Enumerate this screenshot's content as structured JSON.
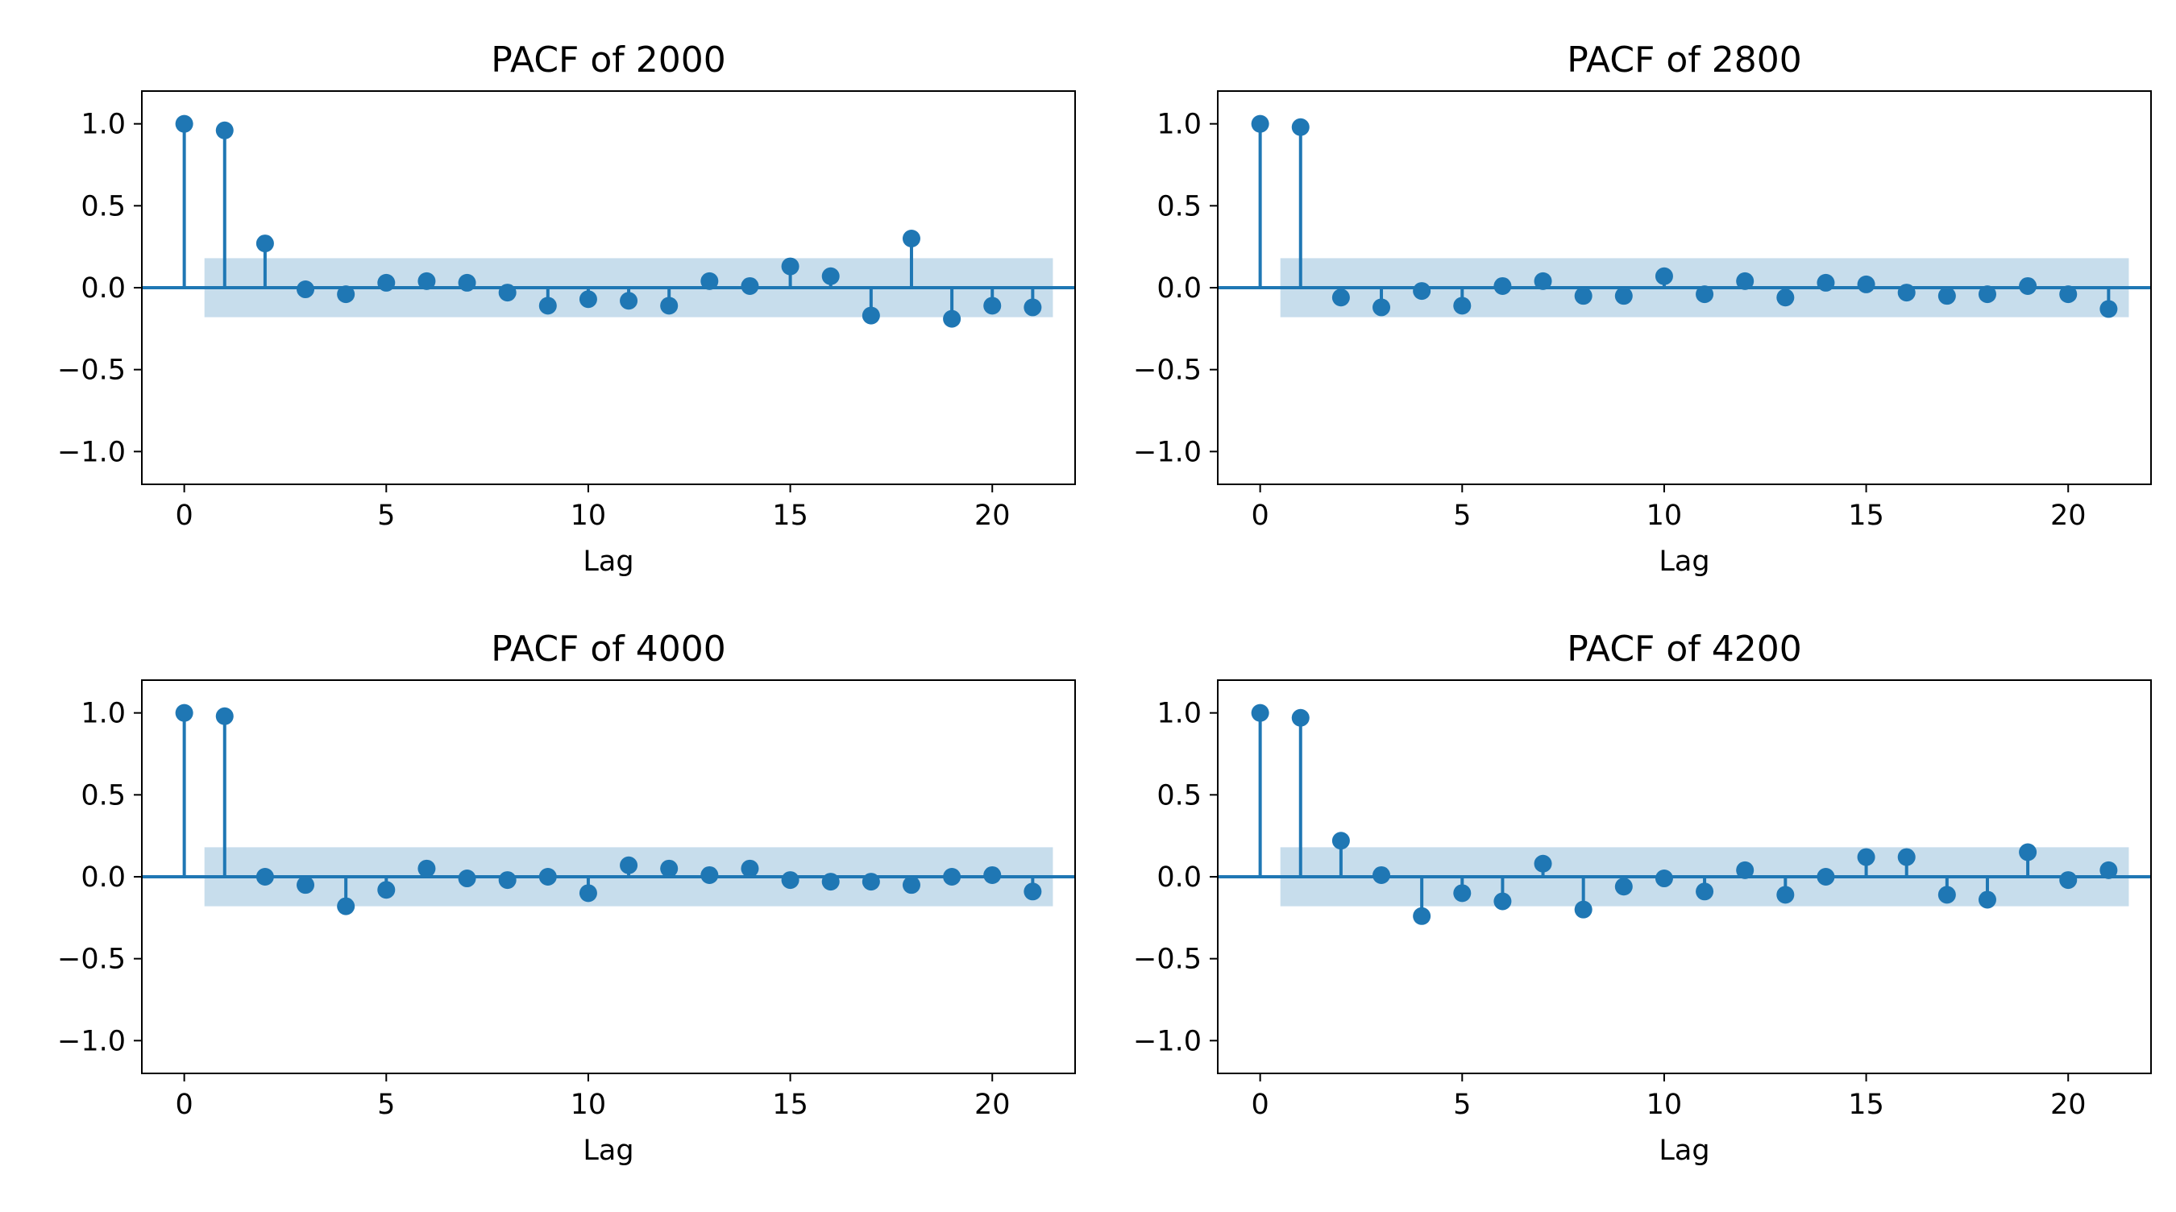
{
  "colors": {
    "series": "#1f77b4",
    "band": "#1f77b4",
    "axes": "#000000"
  },
  "chart_data": [
    {
      "type": "stem",
      "title": "PACF of 2000",
      "xlabel": "Lag",
      "ylabel": "",
      "xlim": [
        -1.05,
        22.05
      ],
      "ylim": [
        -1.2,
        1.2
      ],
      "xticks": [
        "0",
        "5",
        "10",
        "15",
        "20"
      ],
      "yticks": [
        "−1.0",
        "−0.5",
        "0.0",
        "0.5",
        "1.0"
      ],
      "confidence_band": [
        -0.18,
        0.18
      ],
      "x": [
        0,
        1,
        2,
        3,
        4,
        5,
        6,
        7,
        8,
        9,
        10,
        11,
        12,
        13,
        14,
        15,
        16,
        17,
        18,
        19,
        20,
        21
      ],
      "values": [
        1.0,
        0.96,
        0.27,
        -0.01,
        -0.04,
        0.03,
        0.04,
        0.03,
        -0.03,
        -0.11,
        -0.07,
        -0.08,
        -0.11,
        0.04,
        0.01,
        0.13,
        0.07,
        -0.17,
        0.3,
        -0.19,
        -0.11,
        -0.12
      ]
    },
    {
      "type": "stem",
      "title": "PACF of 2800",
      "xlabel": "Lag",
      "ylabel": "",
      "xlim": [
        -1.05,
        22.05
      ],
      "ylim": [
        -1.2,
        1.2
      ],
      "xticks": [
        "0",
        "5",
        "10",
        "15",
        "20"
      ],
      "yticks": [
        "−1.0",
        "−0.5",
        "0.0",
        "0.5",
        "1.0"
      ],
      "confidence_band": [
        -0.18,
        0.18
      ],
      "x": [
        0,
        1,
        2,
        3,
        4,
        5,
        6,
        7,
        8,
        9,
        10,
        11,
        12,
        13,
        14,
        15,
        16,
        17,
        18,
        19,
        20,
        21
      ],
      "values": [
        1.0,
        0.98,
        -0.06,
        -0.12,
        -0.02,
        -0.11,
        0.01,
        0.04,
        -0.05,
        -0.05,
        0.07,
        -0.04,
        0.04,
        -0.06,
        0.03,
        0.02,
        -0.03,
        -0.05,
        -0.04,
        0.01,
        -0.04,
        -0.13
      ]
    },
    {
      "type": "stem",
      "title": "PACF of 4000",
      "xlabel": "Lag",
      "ylabel": "",
      "xlim": [
        -1.05,
        22.05
      ],
      "ylim": [
        -1.2,
        1.2
      ],
      "xticks": [
        "0",
        "5",
        "10",
        "15",
        "20"
      ],
      "yticks": [
        "−1.0",
        "−0.5",
        "0.0",
        "0.5",
        "1.0"
      ],
      "confidence_band": [
        -0.18,
        0.18
      ],
      "x": [
        0,
        1,
        2,
        3,
        4,
        5,
        6,
        7,
        8,
        9,
        10,
        11,
        12,
        13,
        14,
        15,
        16,
        17,
        18,
        19,
        20,
        21
      ],
      "values": [
        1.0,
        0.98,
        0.0,
        -0.05,
        -0.18,
        -0.08,
        0.05,
        -0.01,
        -0.02,
        0.0,
        -0.1,
        0.07,
        0.05,
        0.01,
        0.05,
        -0.02,
        -0.03,
        -0.03,
        -0.05,
        0.0,
        0.01,
        -0.09
      ]
    },
    {
      "type": "stem",
      "title": "PACF of 4200",
      "xlabel": "Lag",
      "ylabel": "",
      "xlim": [
        -1.05,
        22.05
      ],
      "ylim": [
        -1.2,
        1.2
      ],
      "xticks": [
        "0",
        "5",
        "10",
        "15",
        "20"
      ],
      "yticks": [
        "−1.0",
        "−0.5",
        "0.0",
        "0.5",
        "1.0"
      ],
      "confidence_band": [
        -0.18,
        0.18
      ],
      "x": [
        0,
        1,
        2,
        3,
        4,
        5,
        6,
        7,
        8,
        9,
        10,
        11,
        12,
        13,
        14,
        15,
        16,
        17,
        18,
        19,
        20,
        21
      ],
      "values": [
        1.0,
        0.97,
        0.22,
        0.01,
        -0.24,
        -0.1,
        -0.15,
        0.08,
        -0.2,
        -0.06,
        -0.01,
        -0.09,
        0.04,
        -0.11,
        0.0,
        0.12,
        0.12,
        -0.11,
        -0.14,
        0.15,
        -0.02,
        0.04
      ]
    }
  ]
}
